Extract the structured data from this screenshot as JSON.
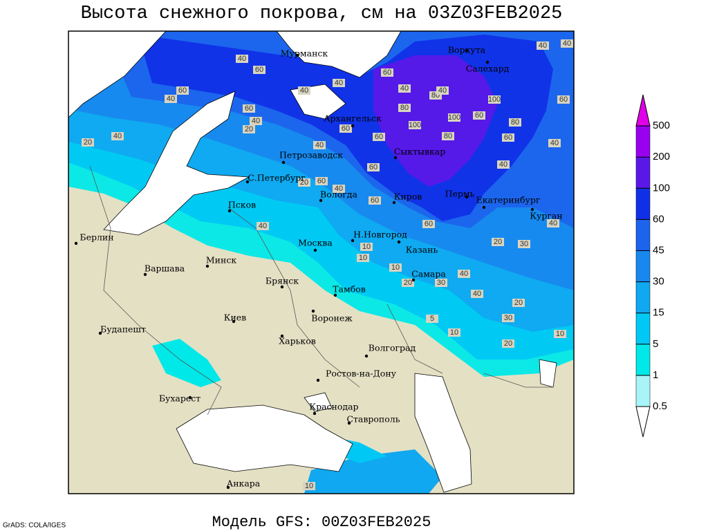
{
  "title": "Высота снежного покрова, см на 03Z03FEB2025",
  "cities": [
    "Мурманск",
    "Воркута",
    "Салехард",
    "Архангельск",
    "Петрозаводск",
    "Сыктывкар",
    "С.Петербург",
    "Вологда",
    "Киров",
    "Пермь",
    "Екатеринбург",
    "Курган",
    "Псков",
    "Н.Новгород",
    "Казань",
    "Москва",
    "Берлин",
    "Минск",
    "Варшава",
    "Брянск",
    "Тамбов",
    "Самара",
    "Киев",
    "Воронеж",
    "Будапешт",
    "Харьков",
    "Волгоград",
    "Ростов-на-Дону",
    "Бухарест",
    "Краснодар",
    "Ставрополь",
    "Анкара"
  ],
  "contour_labels": [
    40,
    60,
    60,
    40,
    40,
    60,
    20,
    40,
    40,
    20,
    40,
    60,
    40,
    80,
    60,
    40,
    60,
    100,
    80,
    100,
    60,
    100,
    60,
    80,
    40,
    40,
    60,
    80,
    40,
    40,
    40,
    60,
    20,
    60,
    40,
    60,
    40,
    60,
    20,
    30,
    40,
    10,
    10,
    10,
    20,
    30,
    40,
    40,
    20,
    30,
    5,
    10,
    20,
    10,
    10
  ],
  "colorbar": {
    "levels": [
      0.5,
      1,
      5,
      15,
      30,
      45,
      60,
      100,
      200,
      500
    ],
    "colors": [
      "#ffffff",
      "#a8f4f8",
      "#00e8e8",
      "#00c8f4",
      "#10a8f0",
      "#1888ee",
      "#1c64ec",
      "#1030e8",
      "#5a18e8",
      "#9800f0",
      "#e000e8"
    ]
  },
  "footer": {
    "credit": "GrADS: COLA/IGES",
    "model": "Модель GFS: 00Z03FEB2025"
  }
}
